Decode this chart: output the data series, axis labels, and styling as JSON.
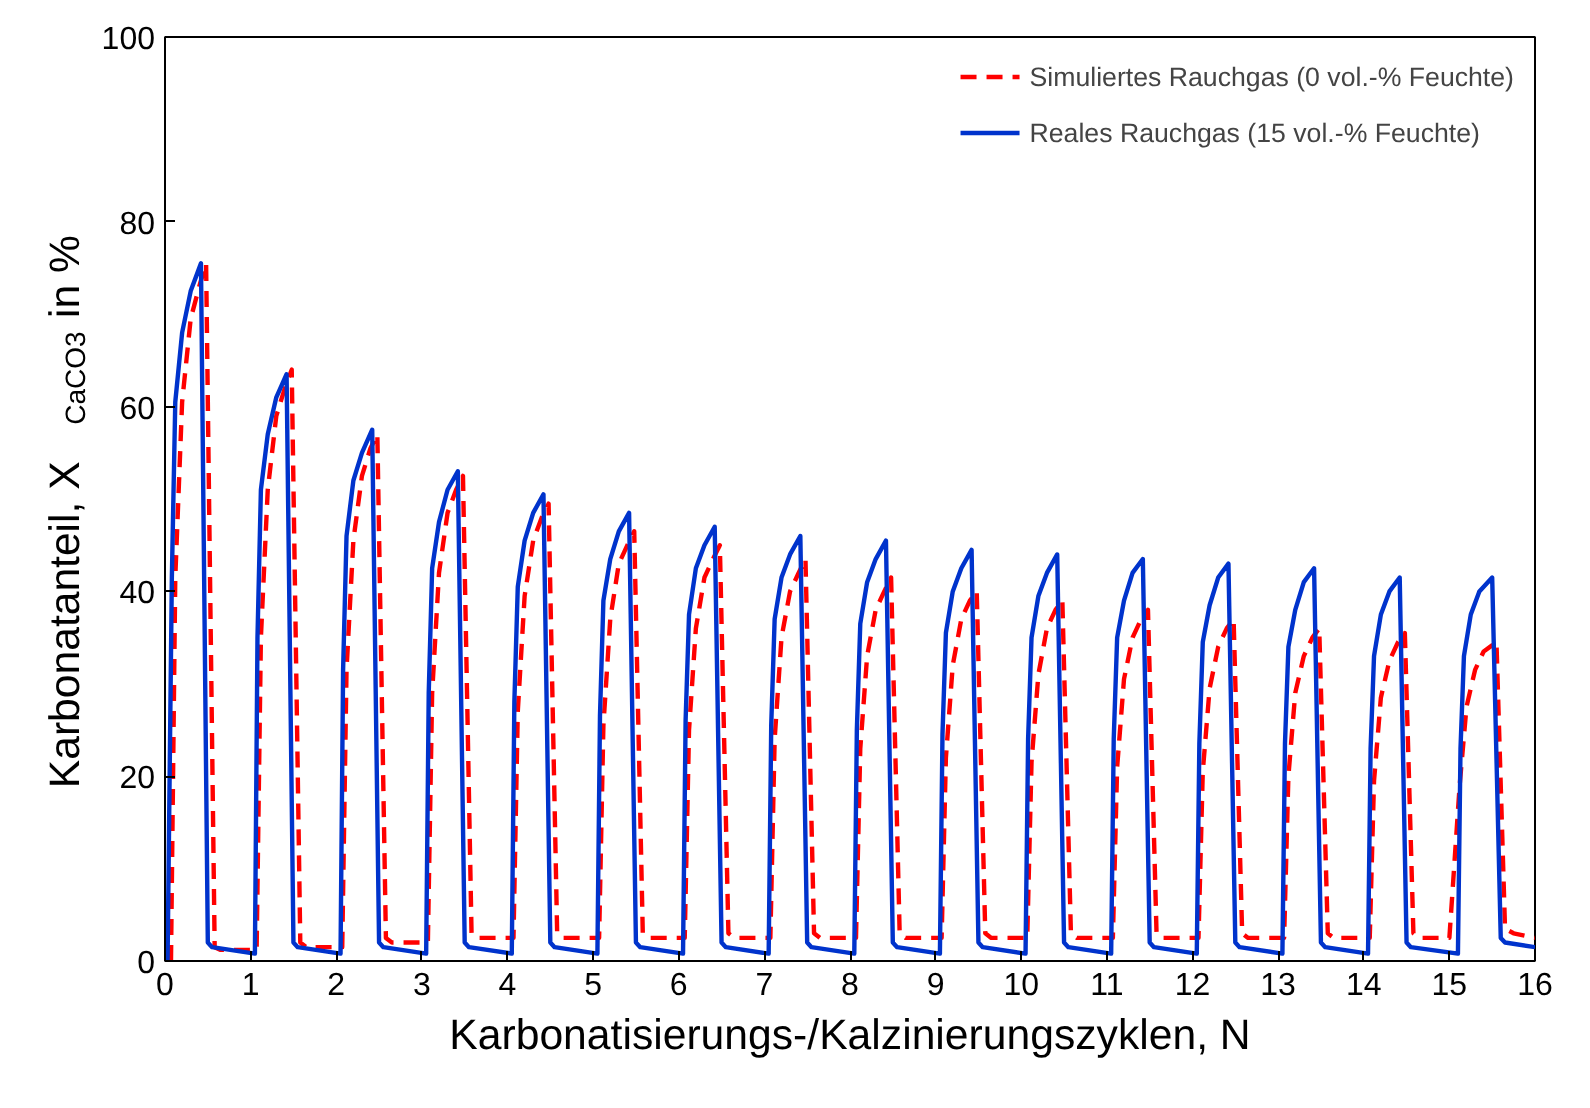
{
  "chart_data": {
    "type": "line",
    "xlabel": "Karbonatisierungs-/Kalzinierungszyklen, N",
    "ylabel": "Karbonatanteil, X$_{CaCO3}$ in %",
    "xlim": [
      0,
      16
    ],
    "xticks": [
      0,
      1,
      2,
      3,
      4,
      5,
      6,
      7,
      8,
      9,
      10,
      11,
      12,
      13,
      14,
      15,
      16
    ],
    "ylim": [
      0,
      100
    ],
    "yticks": [
      0,
      20,
      40,
      60,
      80,
      100
    ],
    "grid": false,
    "legend": "top right",
    "marker": "none",
    "series": [
      {
        "name": "Simuliertes Rauchgas (0 vol.-% Feuchte)",
        "color": "#ff0000",
        "line_style": "dashed",
        "x": [
          0.07,
          0.12,
          0.2,
          0.3,
          0.4,
          0.48,
          0.58,
          0.65,
          1.07,
          1.12,
          1.2,
          1.3,
          1.4,
          1.48,
          1.58,
          1.65,
          2.07,
          2.12,
          2.2,
          2.3,
          2.4,
          2.48,
          2.58,
          2.65,
          3.07,
          3.12,
          3.2,
          3.3,
          3.4,
          3.48,
          3.58,
          3.65,
          4.07,
          4.12,
          4.2,
          4.3,
          4.4,
          4.48,
          4.58,
          4.65,
          5.07,
          5.12,
          5.2,
          5.3,
          5.4,
          5.48,
          5.58,
          5.65,
          6.07,
          6.12,
          6.2,
          6.3,
          6.4,
          6.48,
          6.58,
          6.65,
          7.07,
          7.12,
          7.2,
          7.3,
          7.4,
          7.48,
          7.58,
          7.65,
          8.07,
          8.12,
          8.2,
          8.3,
          8.4,
          8.48,
          8.58,
          8.65,
          9.07,
          9.12,
          9.2,
          9.3,
          9.4,
          9.48,
          9.58,
          9.65,
          10.07,
          10.12,
          10.2,
          10.3,
          10.4,
          10.48,
          10.58,
          10.65,
          11.07,
          11.12,
          11.2,
          11.3,
          11.4,
          11.48,
          11.58,
          11.65,
          12.07,
          12.12,
          12.2,
          12.3,
          12.4,
          12.48,
          12.58,
          12.65,
          13.07,
          13.12,
          13.2,
          13.3,
          13.4,
          13.48,
          13.58,
          13.65,
          14.07,
          14.12,
          14.2,
          14.3,
          14.4,
          14.48,
          14.58,
          14.65,
          15.0,
          15.12,
          15.2,
          15.3,
          15.4,
          15.55,
          15.65,
          15.75,
          16.0
        ],
        "values": [
          0,
          41.5,
          60.5,
          69.5,
          73,
          75.5,
          1.5,
          1.2,
          1.2,
          35,
          51,
          59,
          62,
          64,
          2,
          1.5,
          1.5,
          31.5,
          45.5,
          52.5,
          55.5,
          57,
          2.5,
          2,
          2,
          29,
          42,
          48.5,
          51,
          52.5,
          3,
          2.5,
          2.5,
          27,
          39.5,
          45.5,
          48,
          49.5,
          3,
          2.5,
          2.5,
          25.5,
          37,
          43,
          45,
          46.5,
          3,
          2.5,
          2.5,
          25,
          36,
          41.5,
          43.5,
          45,
          3,
          2.5,
          2.5,
          24,
          35,
          40,
          42,
          43.5,
          3,
          2.5,
          2.5,
          23,
          33,
          38,
          40,
          41.5,
          3,
          2.5,
          2.5,
          22,
          32,
          37,
          39,
          40,
          3,
          2.5,
          2.5,
          21.5,
          31,
          36,
          38,
          39,
          3,
          2.5,
          2.5,
          21,
          30.5,
          35,
          37,
          38,
          3,
          2.5,
          2.5,
          20.5,
          29.5,
          34,
          36,
          37,
          3,
          2.5,
          2.5,
          20,
          29,
          33,
          35,
          36,
          3,
          2.5,
          2.5,
          19.5,
          28.5,
          32.5,
          34.5,
          35.5,
          3,
          2.5,
          2.5,
          19,
          27.5,
          31.5,
          33.5,
          34.5,
          3.5,
          3,
          2.5
        ]
      },
      {
        "name": "Reales Rauchgas (15 vol.-% Feuchte)",
        "color": "#0033cc",
        "line_style": "solid",
        "x": [
          0.03,
          0.08,
          0.12,
          0.2,
          0.3,
          0.42,
          0.5,
          0.55,
          1.05,
          1.08,
          1.12,
          1.2,
          1.3,
          1.42,
          1.5,
          1.55,
          2.05,
          2.08,
          2.12,
          2.2,
          2.3,
          2.42,
          2.5,
          2.55,
          3.05,
          3.08,
          3.12,
          3.2,
          3.3,
          3.42,
          3.5,
          3.55,
          4.05,
          4.08,
          4.12,
          4.2,
          4.3,
          4.42,
          4.5,
          4.55,
          5.05,
          5.08,
          5.12,
          5.2,
          5.3,
          5.42,
          5.5,
          5.55,
          6.05,
          6.08,
          6.12,
          6.2,
          6.3,
          6.42,
          6.5,
          6.55,
          7.05,
          7.08,
          7.12,
          7.2,
          7.3,
          7.42,
          7.5,
          7.55,
          8.05,
          8.08,
          8.12,
          8.2,
          8.3,
          8.42,
          8.5,
          8.55,
          9.05,
          9.08,
          9.12,
          9.2,
          9.3,
          9.42,
          9.5,
          9.55,
          10.05,
          10.08,
          10.12,
          10.2,
          10.3,
          10.42,
          10.5,
          10.55,
          11.05,
          11.08,
          11.12,
          11.2,
          11.3,
          11.42,
          11.5,
          11.55,
          12.05,
          12.08,
          12.12,
          12.2,
          12.3,
          12.42,
          12.5,
          12.55,
          13.05,
          13.08,
          13.12,
          13.2,
          13.3,
          13.42,
          13.5,
          13.55,
          14.05,
          14.08,
          14.12,
          14.2,
          14.3,
          14.42,
          14.5,
          14.55,
          15.1,
          15.13,
          15.17,
          15.25,
          15.35,
          15.5,
          15.6,
          15.65,
          16.0
        ],
        "values": [
          0,
          41.5,
          60.5,
          68,
          72.5,
          75.5,
          2,
          1.5,
          0.8,
          35,
          51,
          57,
          61,
          63.5,
          2,
          1.5,
          0.8,
          31.5,
          46,
          52,
          55,
          57.5,
          2,
          1.5,
          0.8,
          29,
          42.5,
          47.5,
          51,
          53,
          2,
          1.5,
          0.8,
          28,
          40.5,
          45.5,
          48.5,
          50.5,
          2,
          1.5,
          0.8,
          26.5,
          39,
          43.5,
          46.5,
          48.5,
          2,
          1.5,
          0.8,
          26,
          37.5,
          42.5,
          45,
          47,
          2,
          1.5,
          0.8,
          25.5,
          37,
          41.5,
          44,
          46,
          2,
          1.5,
          0.8,
          25,
          36.5,
          41,
          43.5,
          45.5,
          2,
          1.5,
          0.8,
          24.5,
          35.5,
          40,
          42.5,
          44.5,
          2,
          1.5,
          0.8,
          24,
          35,
          39.5,
          42,
          44,
          2,
          1.5,
          0.8,
          24,
          35,
          39,
          42,
          43.5,
          2,
          1.5,
          0.8,
          23.5,
          34.5,
          38.5,
          41.5,
          43,
          2,
          1.5,
          0.8,
          23.5,
          34,
          38,
          41,
          42.5,
          2,
          1.5,
          0.8,
          23,
          33,
          37.5,
          40,
          41.5,
          2,
          1.5,
          0.8,
          23,
          33,
          37.5,
          40,
          41.5,
          2.5,
          2,
          1.5
        ]
      }
    ]
  }
}
